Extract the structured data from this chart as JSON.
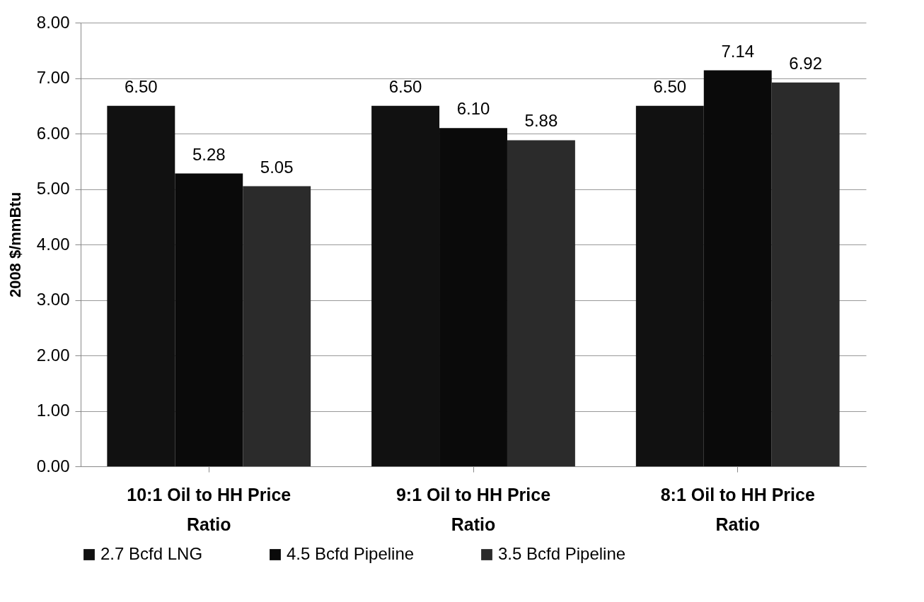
{
  "chart_data": {
    "type": "bar",
    "ylabel": "2008 $/mmBtu",
    "categories": [
      "10:1 Oil to HH Price Ratio",
      "9:1 Oil to HH Price Ratio",
      "8:1 Oil to HH Price Ratio"
    ],
    "series": [
      {
        "name": "2.7 Bcfd LNG",
        "color": "#111111",
        "values": [
          6.5,
          6.5,
          6.5
        ],
        "value_labels": [
          "6.50",
          "6.50",
          "6.50"
        ]
      },
      {
        "name": "4.5 Bcfd Pipeline",
        "color": "#0a0a0a",
        "values": [
          5.28,
          6.1,
          7.14
        ],
        "value_labels": [
          "5.28",
          "6.10",
          "7.14"
        ]
      },
      {
        "name": "3.5 Bcfd Pipeline",
        "color": "#2b2b2b",
        "values": [
          5.05,
          5.88,
          6.92
        ],
        "value_labels": [
          "5.05",
          "5.88",
          "6.92"
        ]
      }
    ],
    "ylim": [
      0,
      8
    ],
    "yticks": [
      {
        "value": 0,
        "label": "0.00"
      },
      {
        "value": 1,
        "label": "1.00"
      },
      {
        "value": 2,
        "label": "2.00"
      },
      {
        "value": 3,
        "label": "3.00"
      },
      {
        "value": 4,
        "label": "4.00"
      },
      {
        "value": 5,
        "label": "5.00"
      },
      {
        "value": 6,
        "label": "6.00"
      },
      {
        "value": 7,
        "label": "7.00"
      },
      {
        "value": 8,
        "label": "8.00"
      }
    ],
    "grid": "y",
    "legend": "bottom"
  }
}
